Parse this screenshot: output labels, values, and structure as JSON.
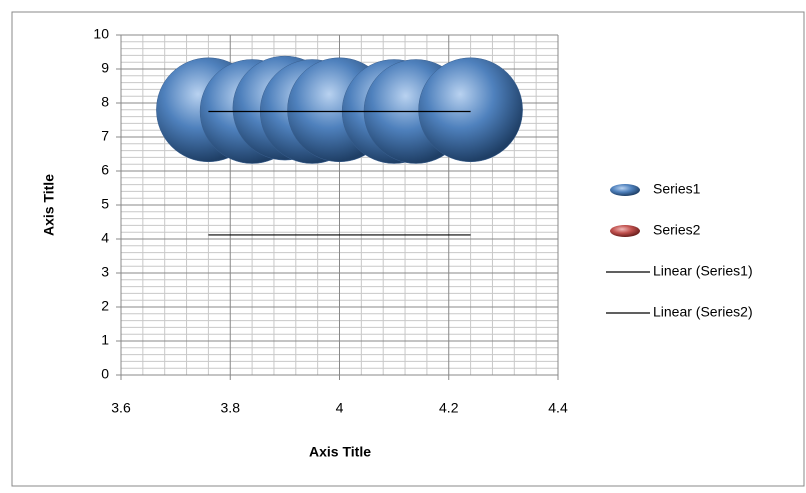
{
  "chart_data": {
    "type": "bubble",
    "x_title": "Axis Title",
    "y_title": "Axis Title",
    "xlim": [
      3.6,
      4.4
    ],
    "xticks": [
      3.6,
      3.8,
      4,
      4.2,
      4.4
    ],
    "ylim": [
      0,
      10
    ],
    "yticks": [
      0,
      1,
      2,
      3,
      4,
      5,
      6,
      7,
      8,
      9,
      10
    ],
    "grid": true,
    "minor_grid": true,
    "legend": "right",
    "series": [
      {
        "name": "Series1",
        "color": "#4f81bd",
        "x": [
          3.76,
          3.84,
          3.9,
          3.95,
          4.0,
          4.1,
          4.14,
          4.24
        ],
        "values": [
          7.8,
          7.75,
          7.85,
          7.75,
          7.8,
          7.75,
          7.75,
          7.8
        ],
        "sizes": [
          1,
          1,
          1,
          1,
          1,
          1,
          1,
          1
        ]
      },
      {
        "name": "Series2",
        "color": "#c0504d",
        "x": [],
        "values": [],
        "sizes": []
      }
    ],
    "trendlines": [
      {
        "name": "Linear (Series1)",
        "color": "#000000",
        "x": [
          3.76,
          4.24
        ],
        "values": [
          7.75,
          7.75
        ]
      },
      {
        "name": "Linear (Series2)",
        "color": "#000000",
        "x": [
          3.76,
          4.24
        ],
        "values": [
          4.12,
          4.12
        ]
      }
    ]
  }
}
